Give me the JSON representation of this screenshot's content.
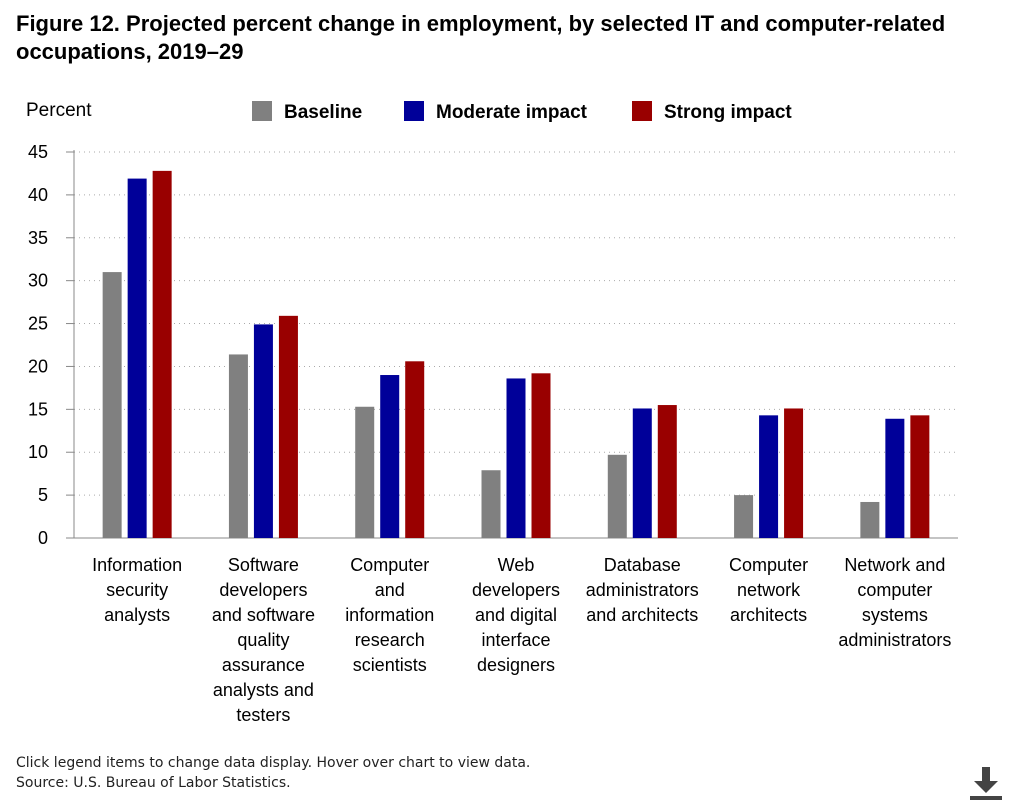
{
  "title": "Figure 12. Projected percent change in employment, by selected IT and computer-related occupations, 2019–29",
  "footer": {
    "note": "Click legend items to change data display. Hover over chart to view data.",
    "source": "Source: U.S. Bureau of Labor Statistics."
  },
  "download_icon": "download-icon",
  "chart_data": {
    "type": "bar",
    "ylabel": "Percent",
    "ylim": [
      0,
      45
    ],
    "yticks": [
      0,
      5,
      10,
      15,
      20,
      25,
      30,
      35,
      40,
      45
    ],
    "grid": true,
    "legend_position": "top",
    "categories": [
      [
        "Information",
        "security",
        "analysts"
      ],
      [
        "Software",
        "developers",
        "and software",
        "quality",
        "assurance",
        "analysts and",
        "testers"
      ],
      [
        "Computer",
        "and",
        "information",
        "research",
        "scientists"
      ],
      [
        "Web",
        "developers",
        "and digital",
        "interface",
        "designers"
      ],
      [
        "Database",
        "administrators",
        "and architects"
      ],
      [
        "Computer",
        "network",
        "architects"
      ],
      [
        "Network and",
        "computer",
        "systems",
        "administrators"
      ]
    ],
    "series": [
      {
        "name": "Baseline",
        "color": "#808080",
        "values": [
          31.0,
          21.4,
          15.3,
          7.9,
          9.7,
          5.0,
          4.2
        ]
      },
      {
        "name": "Moderate impact",
        "color": "#000099",
        "values": [
          41.9,
          24.9,
          19.0,
          18.6,
          15.1,
          14.3,
          13.9
        ]
      },
      {
        "name": "Strong impact",
        "color": "#990000",
        "values": [
          42.8,
          25.9,
          20.6,
          19.2,
          15.5,
          15.1,
          14.3
        ]
      }
    ]
  }
}
